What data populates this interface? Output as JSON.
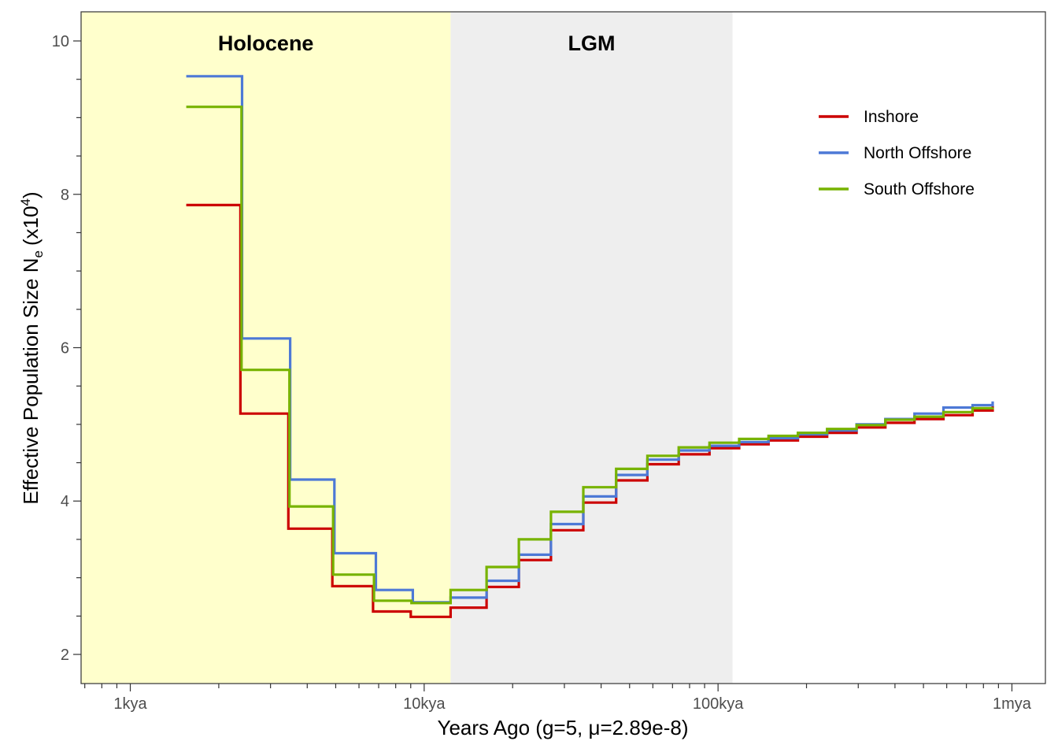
{
  "chart_data": {
    "type": "line",
    "step": true,
    "x_scale": "log",
    "xlabel": "Years Ago (g=5, μ=2.89e-8)",
    "ylabel_main": "Effective Population Size N",
    "ylabel_sub": "e",
    "ylabel_paren_open": "(x10",
    "ylabel_sup": "4",
    "ylabel_paren_close": ")",
    "xlim": [
      680,
      1300000
    ],
    "ylim": [
      1.62,
      10.38
    ],
    "x_ticks": [
      {
        "value": 1000,
        "label": "1kya"
      },
      {
        "value": 10000,
        "label": "10kya"
      },
      {
        "value": 100000,
        "label": "100kya"
      },
      {
        "value": 1000000,
        "label": "1mya"
      }
    ],
    "y_ticks": [
      {
        "value": 2,
        "label": "2"
      },
      {
        "value": 4,
        "label": "4"
      },
      {
        "value": 6,
        "label": "6"
      },
      {
        "value": 8,
        "label": "8"
      },
      {
        "value": 10,
        "label": "10"
      }
    ],
    "regions": [
      {
        "label": "Holocene",
        "x_start": 680,
        "x_end": 12300,
        "color": "#ffffcc"
      },
      {
        "label": "LGM",
        "x_start": 12300,
        "x_end": 112000,
        "color": "#eeeeee"
      }
    ],
    "grid": false,
    "legend_position": "top-right",
    "series": [
      {
        "name": "Inshore",
        "color": "#cc0000",
        "x": [
          1550,
          2370,
          3450,
          4870,
          6700,
          9000,
          12300,
          16300,
          21000,
          27000,
          34800,
          45000,
          57500,
          73500,
          93500,
          118000,
          148500,
          187000,
          235000,
          296000,
          371000,
          466000,
          585000,
          735000,
          860000
        ],
        "y": [
          7.86,
          5.14,
          3.64,
          2.89,
          2.56,
          2.49,
          2.61,
          2.88,
          3.23,
          3.62,
          3.98,
          4.27,
          4.48,
          4.61,
          4.69,
          4.74,
          4.79,
          4.84,
          4.89,
          4.96,
          5.02,
          5.07,
          5.12,
          5.18,
          5.24
        ]
      },
      {
        "name": "North Offshore",
        "color": "#4d79d6",
        "x": [
          1550,
          2400,
          3500,
          4950,
          6850,
          9150,
          12300,
          16300,
          21000,
          27000,
          34800,
          45000,
          57500,
          73500,
          93500,
          118000,
          148500,
          187000,
          235000,
          296000,
          371000,
          466000,
          585000,
          735000,
          860000
        ],
        "y": [
          9.54,
          6.12,
          4.28,
          3.32,
          2.84,
          2.68,
          2.74,
          2.96,
          3.3,
          3.7,
          4.06,
          4.34,
          4.54,
          4.66,
          4.72,
          4.77,
          4.82,
          4.87,
          4.92,
          5.0,
          5.07,
          5.14,
          5.22,
          5.25,
          5.3
        ]
      },
      {
        "name": "South Offshore",
        "color": "#77b300",
        "x": [
          1550,
          2390,
          3480,
          4900,
          6750,
          9050,
          12300,
          16300,
          21000,
          27000,
          34800,
          45000,
          57500,
          73500,
          93500,
          118000,
          148500,
          187000,
          235000,
          296000,
          371000,
          466000,
          585000,
          735000,
          860000
        ],
        "y": [
          9.14,
          5.71,
          3.93,
          3.04,
          2.7,
          2.67,
          2.84,
          3.14,
          3.5,
          3.86,
          4.18,
          4.42,
          4.59,
          4.7,
          4.76,
          4.81,
          4.85,
          4.89,
          4.94,
          4.99,
          5.06,
          5.1,
          5.16,
          5.21,
          5.22
        ]
      }
    ]
  }
}
